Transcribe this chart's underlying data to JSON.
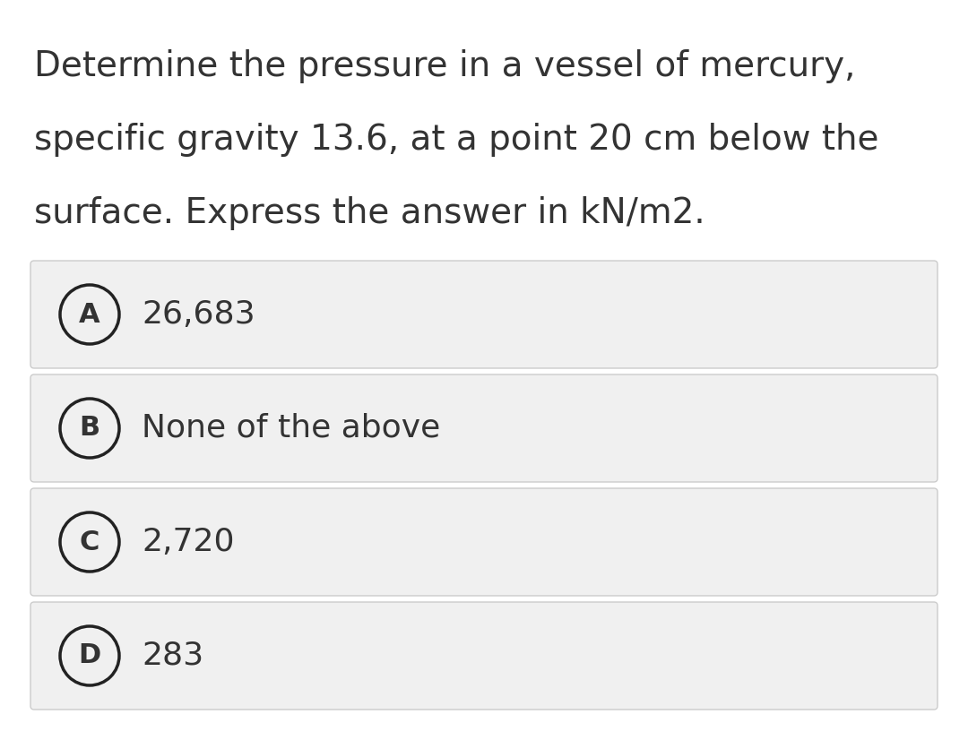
{
  "question_lines": [
    "Determine the pressure in a vessel of mercury,",
    "specific gravity 13.6, at a point 20 cm below the",
    "surface. Express the answer in kN/m2."
  ],
  "options": [
    {
      "label": "A",
      "text": "26,683"
    },
    {
      "label": "B",
      "text": "None of the above"
    },
    {
      "label": "C",
      "text": "2,720"
    },
    {
      "label": "D",
      "text": "283"
    }
  ],
  "bg_color": "#ffffff",
  "option_bg_color": "#f0f0f0",
  "option_border_color": "#cccccc",
  "text_color": "#333333",
  "circle_edge_color": "#222222",
  "question_fontsize": 28,
  "option_fontsize": 26,
  "label_fontsize": 22
}
